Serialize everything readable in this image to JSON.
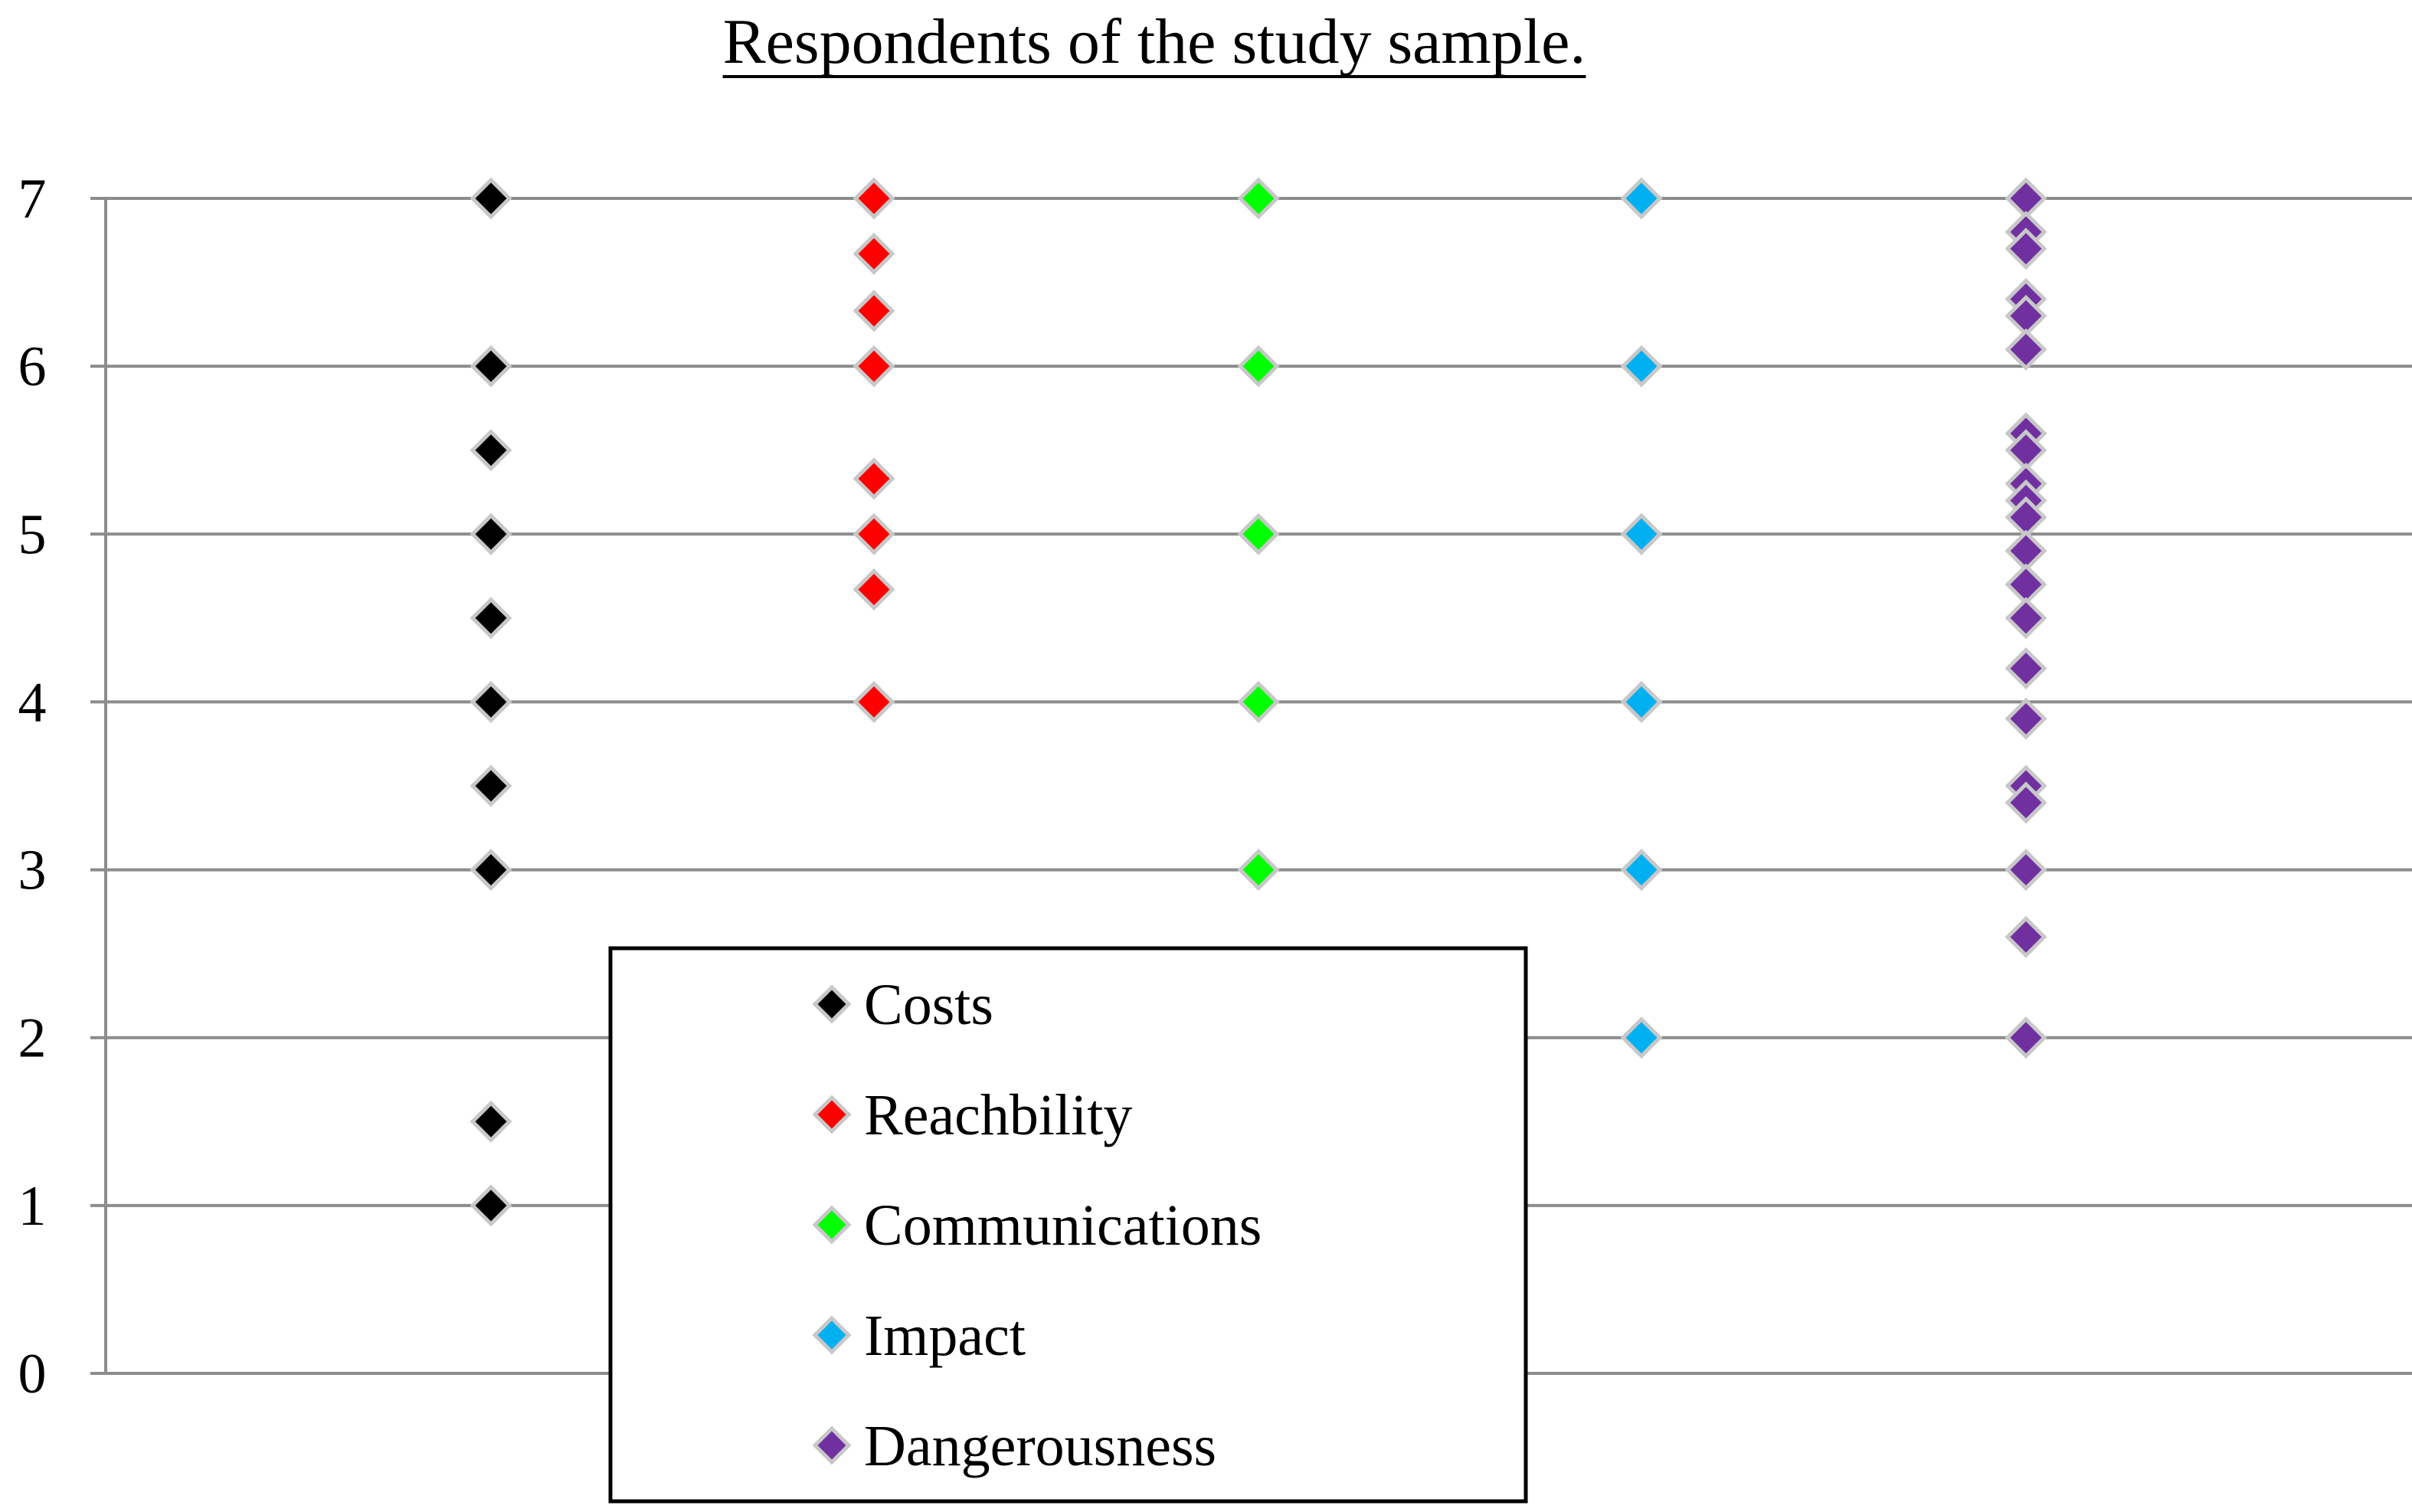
{
  "chart_data": {
    "type": "scatter",
    "title": "Respondents of the study sample.",
    "xlabel": "",
    "ylabel": "",
    "ylim": [
      0,
      7
    ],
    "yticks": [
      0,
      1,
      2,
      3,
      4,
      5,
      6,
      7
    ],
    "grid": true,
    "legend_position": "bottom-center",
    "series": [
      {
        "name": "Costs",
        "color": "#000000",
        "values": [
          7,
          6,
          5.5,
          5,
          4.5,
          4,
          3.5,
          3,
          1.5,
          1
        ]
      },
      {
        "name": "Reachbility",
        "color": "#ff0000",
        "values": [
          7,
          6.67,
          6.33,
          6,
          5.33,
          5,
          4.67,
          4
        ]
      },
      {
        "name": "Communications",
        "color": "#00ff00",
        "values": [
          7,
          6,
          5,
          4,
          3
        ]
      },
      {
        "name": "Impact",
        "color": "#00b0f0",
        "values": [
          7,
          6,
          5,
          4,
          3,
          2
        ]
      },
      {
        "name": "Dangerousness",
        "color": "#7030a0",
        "values": [
          7,
          6.8,
          6.7,
          6.4,
          6.3,
          6.1,
          5.6,
          5.5,
          5.3,
          5.2,
          5.1,
          4.9,
          4.7,
          4.5,
          4.2,
          3.9,
          3.5,
          3.4,
          3.0,
          2.6,
          2.0
        ]
      }
    ]
  }
}
